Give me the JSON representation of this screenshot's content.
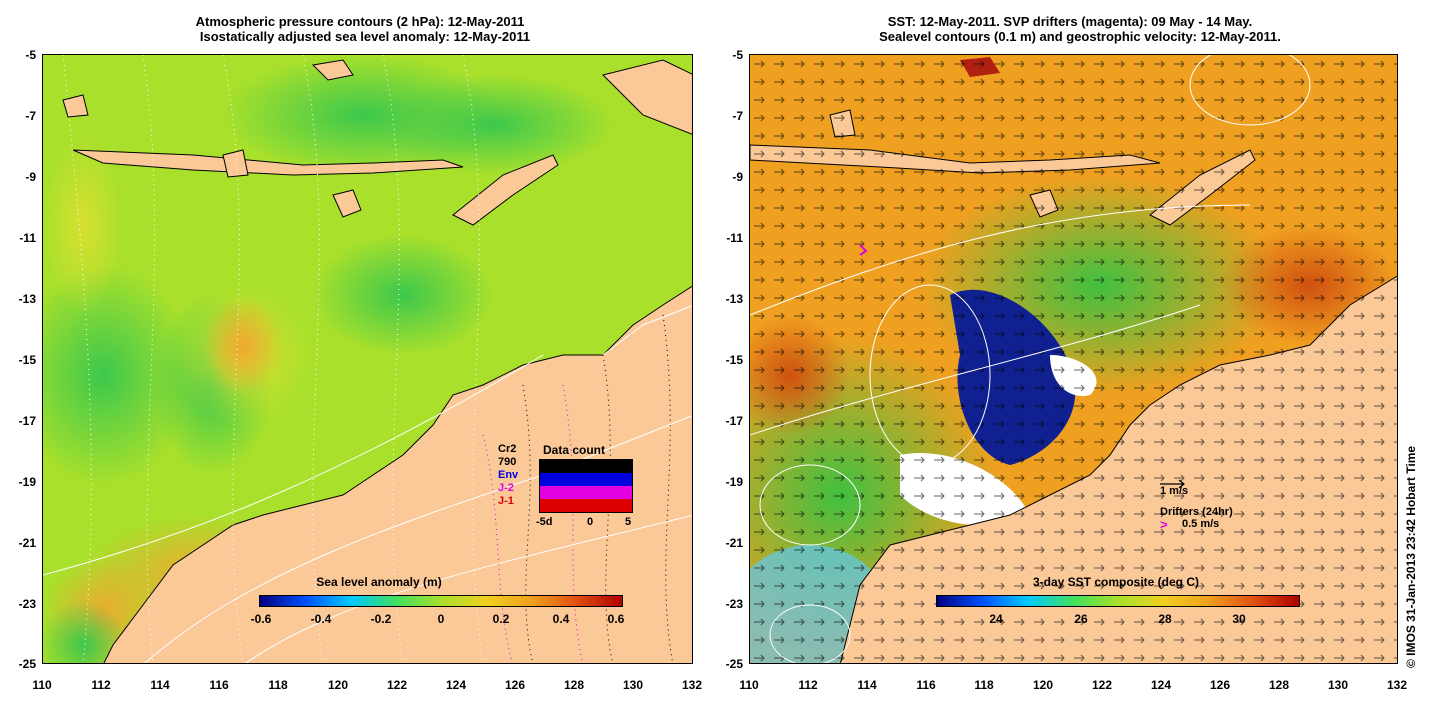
{
  "left_panel": {
    "title_line1": "Atmospheric pressure contours (2 hPa): 12-May-2011",
    "title_line2": "Isostatically adjusted sea level anomaly: 12-May-2011",
    "colorbar_title": "Sea level anomaly (m)",
    "colorbar_labels": [
      "-0.6",
      "-0.4",
      "-0.2",
      "0",
      "0.2",
      "0.4",
      "0.6"
    ],
    "satellite_legend": {
      "labels": [
        {
          "text": "Cr2",
          "color": "#000000"
        },
        {
          "text": "790",
          "color": "#000000"
        },
        {
          "text": "Env",
          "color": "#0000dd"
        },
        {
          "text": "J-2",
          "color": "#e000e0"
        },
        {
          "text": "J-1",
          "color": "#dd0000"
        }
      ],
      "title": "Data count",
      "axis_labels": [
        "-5d",
        "0",
        "5"
      ]
    }
  },
  "right_panel": {
    "title_line1": "SST: 12-May-2011. SVP drifters (magenta): 09 May - 14 May.",
    "title_line2": "Sealevel contours (0.1 m) and geostrophic velocity: 12-May-2011.",
    "colorbar_title": "3-day SST composite (deg C)",
    "colorbar_labels": [
      "24",
      "26",
      "28",
      "30"
    ],
    "velocity_legend": "1 m/s",
    "drifter_legend_title": "Drifters (24hr)",
    "drifter_legend_value": "0.5 m/s"
  },
  "axes": {
    "y_labels": [
      "-5",
      "-7",
      "-9",
      "-11",
      "-13",
      "-15",
      "-17",
      "-19",
      "-21",
      "-23",
      "-25"
    ],
    "x_labels": [
      "110",
      "112",
      "114",
      "116",
      "118",
      "120",
      "122",
      "124",
      "126",
      "128",
      "130",
      "132"
    ]
  },
  "credit": "© IMOS 31-Jan-2013 23:42 Hobart Time",
  "colors": {
    "land": "#fbc898",
    "ocean_green": "#9be02c",
    "ocean_orange": "#f0a020",
    "cold_blue": "#0a1a8a"
  }
}
